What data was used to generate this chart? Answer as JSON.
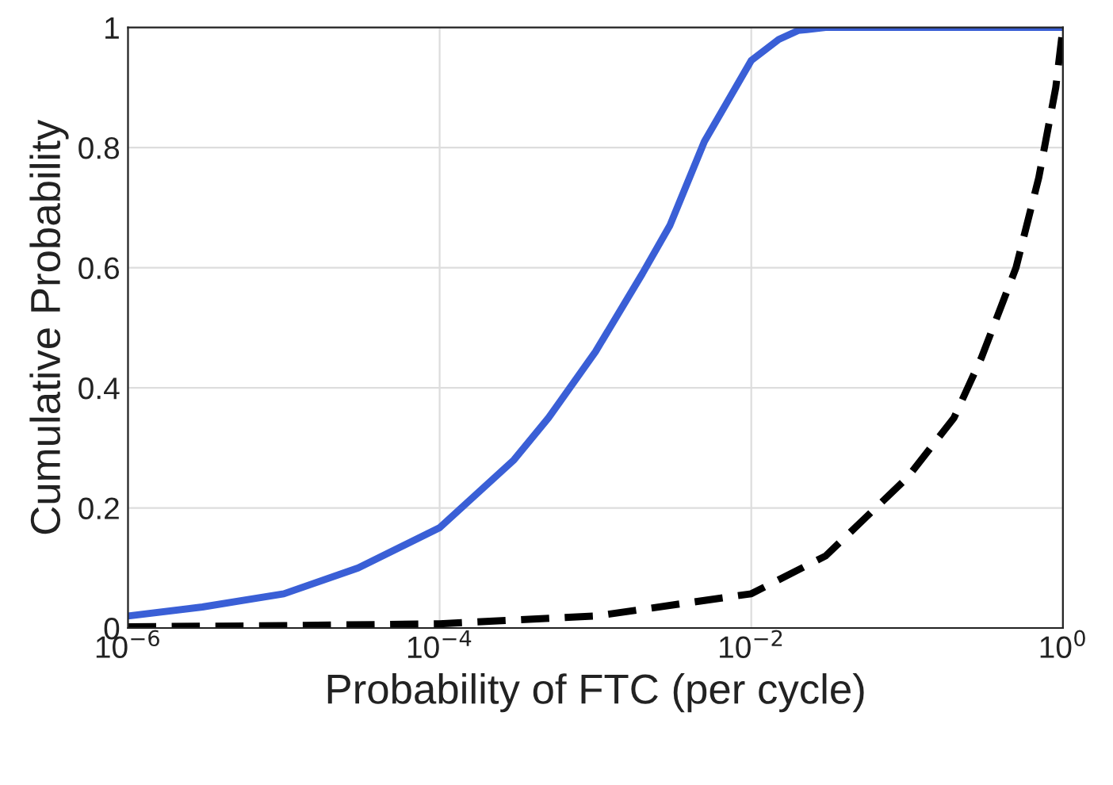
{
  "chart_data": {
    "type": "line",
    "xlabel": "Probability of FTC (per cycle)",
    "ylabel": "Cumulative Probability",
    "log": "x",
    "xlim": [
      1e-06,
      1
    ],
    "ylim": [
      0,
      1
    ],
    "xticks": [
      {
        "value": 1e-06,
        "label": "10$^{−6}$"
      },
      {
        "value": 0.0001,
        "label": "10$^{−4}$"
      },
      {
        "value": 0.01,
        "label": "10$^{−2}$"
      },
      {
        "value": 1,
        "label": "10$^{0}$"
      }
    ],
    "yticks": [
      0,
      0.2,
      0.4,
      0.6,
      0.8,
      1
    ],
    "grid": true,
    "legend": false,
    "marker": "none",
    "series": [
      {
        "color": "#3a5fd6",
        "line_style": "solid",
        "x": [
          1e-06,
          3e-06,
          1e-05,
          3e-05,
          0.0001,
          0.0003,
          0.0005,
          0.001,
          0.002,
          0.003,
          0.005,
          0.01,
          0.015,
          0.02,
          0.03,
          0.05,
          0.1,
          1
        ],
        "values": [
          0.02,
          0.035,
          0.057,
          0.1,
          0.167,
          0.28,
          0.35,
          0.46,
          0.59,
          0.67,
          0.81,
          0.945,
          0.98,
          0.995,
          1,
          1,
          1,
          1
        ]
      },
      {
        "color": "#000000",
        "line_style": "dashed",
        "x": [
          1e-06,
          1e-05,
          0.0001,
          0.001,
          0.01,
          0.03,
          0.1,
          0.2,
          0.3,
          0.5,
          0.7,
          0.9,
          1
        ],
        "values": [
          0.002,
          0.004,
          0.007,
          0.02,
          0.057,
          0.12,
          0.25,
          0.35,
          0.45,
          0.6,
          0.75,
          0.9,
          1
        ]
      }
    ]
  }
}
